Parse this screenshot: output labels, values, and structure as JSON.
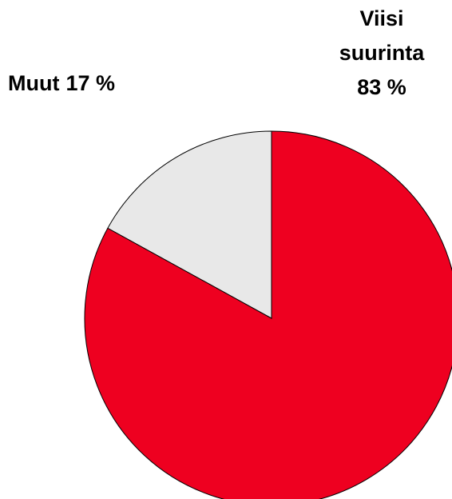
{
  "chart_data": {
    "type": "pie",
    "categories": [
      "Viisi suurinta",
      "Muut"
    ],
    "values": [
      83,
      17
    ],
    "value_labels": [
      "83 %",
      "17 %"
    ],
    "colors": [
      "#ee0020",
      "#e8e8e8"
    ]
  }
}
